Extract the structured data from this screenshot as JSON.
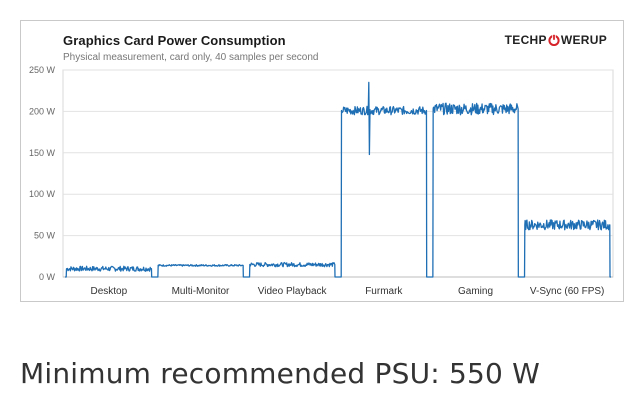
{
  "chart_data": {
    "type": "line",
    "title": "Graphics  Card Power Consumption",
    "subtitle": "Physical measurement, card only, 40 samples per second",
    "brand": "TECHPOWERUP",
    "brand_parts": [
      "TECHP",
      "WERUP"
    ],
    "ylim": [
      0,
      250
    ],
    "yticks": [
      0,
      50,
      100,
      150,
      200,
      250
    ],
    "ytick_labels": [
      "0 W",
      "50 W",
      "100 W",
      "150 W",
      "200 W",
      "250 W"
    ],
    "categories": [
      "Desktop",
      "Multi-Monitor",
      "Video Playback",
      "Furmark",
      "Gaming",
      "V-Sync (60 FPS)"
    ],
    "grid": true,
    "series_color": "#1f6fb5",
    "segments": [
      {
        "category": "Desktop",
        "base": 10,
        "noise": 3
      },
      {
        "category": "Multi-Monitor",
        "base": 14,
        "noise": 1
      },
      {
        "category": "Video Playback",
        "base": 15,
        "noise": 2.5
      },
      {
        "category": "Furmark",
        "base": 201,
        "noise": 5,
        "spike_max": 235,
        "spike_min": 148
      },
      {
        "category": "Gaming",
        "base": 203,
        "noise": 7
      },
      {
        "category": "V-Sync (60 FPS)",
        "base": 63,
        "noise": 6
      }
    ]
  },
  "footer": {
    "psu_text": "Minimum recommended PSU: 550 W"
  }
}
